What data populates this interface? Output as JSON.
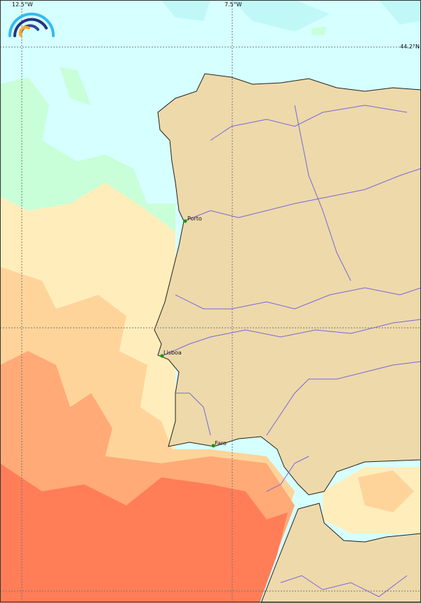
{
  "grid_labels": {
    "lon_west": "12.5°W",
    "lon_mid": "7.5°W",
    "lat_top": "44.2°N"
  },
  "cities": [
    {
      "name": "Porto"
    },
    {
      "name": "Lisboa"
    },
    {
      "name": "Faro"
    }
  ],
  "colors": {
    "land": "#eed9aa",
    "sea_cold": "#d6ffff",
    "sea_cool": "#c8ffd8",
    "sea_mild": "#ffeebb",
    "sea_warm": "#ffd49a",
    "sea_warmer": "#ffaa77",
    "sea_hot": "#ff7e58",
    "river": "#7a66dd",
    "city_marker": "#119911"
  },
  "logo": {
    "icon": "rainbow-arc-logo-icon"
  }
}
